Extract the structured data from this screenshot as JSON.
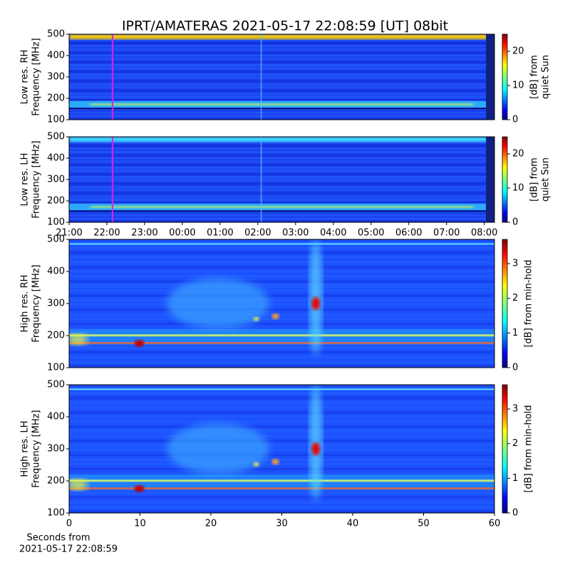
{
  "title": "IPRT/AMATERAS 2021-05-17 22:08:59 [UT]   08bit",
  "chart_data": [
    {
      "type": "spectrogram",
      "ylabel": [
        "Low res. RH",
        "Frequency [MHz]"
      ],
      "xlim": [
        21,
        32.27
      ],
      "cursor_x": 22.15,
      "cursor_color": "#e020e0",
      "ylim": [
        100,
        500
      ],
      "yticks": [
        100,
        200,
        300,
        400,
        500
      ],
      "colorbar": {
        "label": [
          "[dB] from",
          "quiet Sun"
        ],
        "lim": [
          0,
          25
        ],
        "ticks": [
          0,
          10,
          20
        ]
      }
    },
    {
      "type": "spectrogram",
      "ylabel": [
        "Low res. LH",
        "Frequency [MHz]"
      ],
      "xlim": [
        21,
        32.27
      ],
      "cursor_x": 22.15,
      "cursor_color": "#e020e0",
      "xticks": [
        {
          "value": 21,
          "label": "21:00"
        },
        {
          "value": 22,
          "label": "22:00"
        },
        {
          "value": 23,
          "label": "23:00"
        },
        {
          "value": 24,
          "label": "00:00"
        },
        {
          "value": 25,
          "label": "01:00"
        },
        {
          "value": 26,
          "label": "02:00"
        },
        {
          "value": 27,
          "label": "03:00"
        },
        {
          "value": 28,
          "label": "04:00"
        },
        {
          "value": 29,
          "label": "05:00"
        },
        {
          "value": 30,
          "label": "06:00"
        },
        {
          "value": 31,
          "label": "07:00"
        },
        {
          "value": 32,
          "label": "08:00"
        }
      ],
      "ylim": [
        100,
        500
      ],
      "yticks": [
        100,
        200,
        300,
        400,
        500
      ],
      "colorbar": {
        "label": [
          "[dB] from",
          "quiet Sun"
        ],
        "lim": [
          0,
          25
        ],
        "ticks": [
          0,
          10,
          20
        ]
      }
    },
    {
      "type": "spectrogram",
      "ylabel": [
        "High res. RH",
        "Frequency [MHz]"
      ],
      "xlim": [
        0,
        60
      ],
      "ylim": [
        100,
        500
      ],
      "yticks": [
        100,
        200,
        300,
        400,
        500
      ],
      "colorbar": {
        "label": [
          "[dB] from min-hold"
        ],
        "lim": [
          0,
          3.7
        ],
        "ticks": [
          0,
          1,
          2,
          3
        ]
      }
    },
    {
      "type": "spectrogram",
      "ylabel": [
        "High res. LH",
        "Frequency [MHz]"
      ],
      "xlim": [
        0,
        60
      ],
      "xticks": [
        0,
        10,
        20,
        30,
        40,
        50,
        60
      ],
      "xlabel": [
        "Seconds from",
        "2021-05-17 22:08:59"
      ],
      "ylim": [
        100,
        500
      ],
      "yticks": [
        100,
        200,
        300,
        400,
        500
      ],
      "colorbar": {
        "label": [
          "[dB] from min-hold"
        ],
        "lim": [
          0,
          3.7
        ],
        "ticks": [
          0,
          1,
          2,
          3
        ]
      }
    }
  ]
}
